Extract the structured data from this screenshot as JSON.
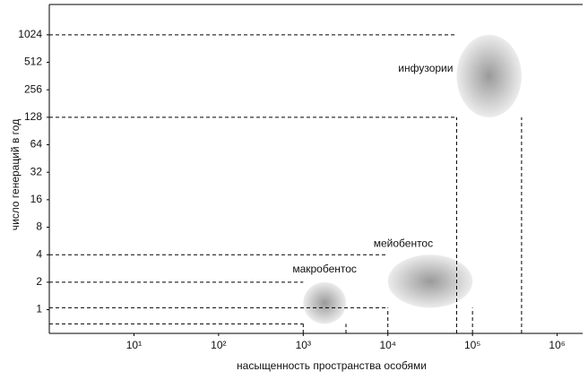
{
  "chart_data": {
    "type": "region",
    "xlabel": "насыщенность пространства особями",
    "ylabel": "число генераций в год",
    "xscale": "log",
    "yscale": "log",
    "xlim": [
      1,
      2000000
    ],
    "ylim": [
      0.55,
      2200
    ],
    "xticks": [
      {
        "value": 10,
        "label": "10¹"
      },
      {
        "value": 100,
        "label": "10²"
      },
      {
        "value": 1000,
        "label": "10³"
      },
      {
        "value": 10000,
        "label": "10⁴"
      },
      {
        "value": 100000,
        "label": "10⁵"
      },
      {
        "value": 1000000,
        "label": "10⁶"
      }
    ],
    "yticks": [
      1,
      2,
      4,
      8,
      16,
      32,
      64,
      128,
      256,
      512,
      1024
    ],
    "series": [
      {
        "name": "макробентос",
        "x": [
          1000,
          3200
        ],
        "y": [
          0.7,
          2
        ]
      },
      {
        "name": "мейобентос",
        "x": [
          10000,
          100000
        ],
        "y": [
          1.05,
          4
        ]
      },
      {
        "name": "инфузории",
        "x": [
          65000,
          380000
        ],
        "y": [
          128,
          1024
        ]
      }
    ]
  }
}
